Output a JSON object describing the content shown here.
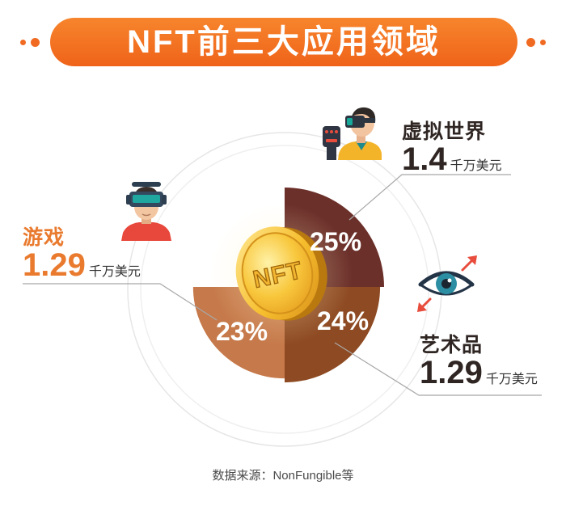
{
  "chart_data": {
    "type": "pie",
    "title": "NFT前三大应用领域",
    "categories": [
      "虚拟世界",
      "艺术品",
      "游戏"
    ],
    "values": [
      25,
      24,
      23
    ],
    "value_labels": [
      "25%",
      "24%",
      "23%"
    ],
    "amounts": [
      1.4,
      1.29,
      1.29
    ],
    "amount_unit": "千万美元",
    "colors": [
      "#6C302A",
      "#8E4A22",
      "#C6794A"
    ]
  },
  "coin": {
    "label": "NFT"
  },
  "footer": {
    "source": "数据来源：NonFungible等"
  },
  "colors": {
    "accent": "#F06A22",
    "gaming_label": "#E97A2E"
  },
  "icons": {
    "virtual_world": "vr-user-with-glove-icon",
    "gaming": "vr-headset-gamer-icon",
    "art": "eye-icon"
  }
}
